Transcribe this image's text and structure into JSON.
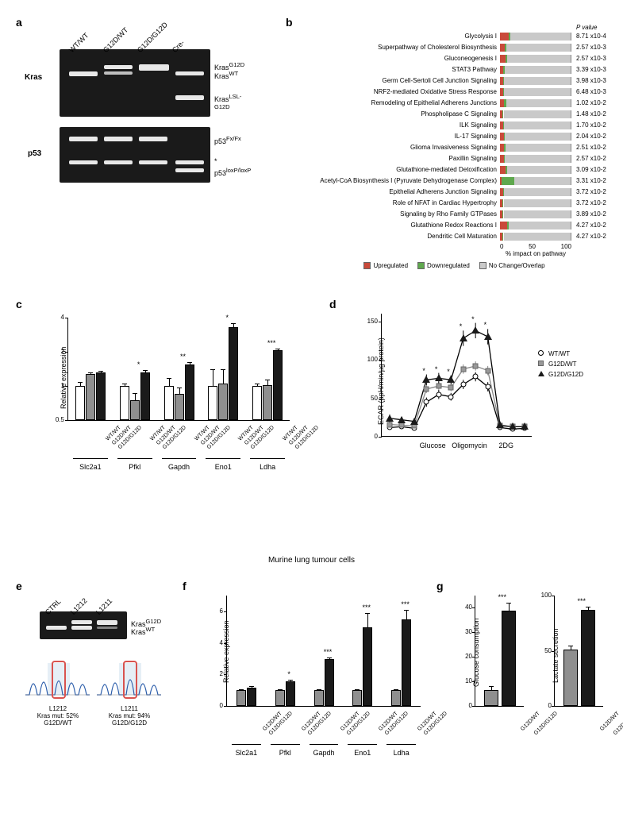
{
  "colors": {
    "up": "#c94a3a",
    "down": "#5fa84e",
    "nochange": "#c9c9c9",
    "bar_white": "#ffffff",
    "bar_gray": "#8f8f8f",
    "bar_black": "#1a1a1a",
    "gel_bg": "#1a1a1a",
    "band": "#ececec",
    "chrom_line": "#2a5caa",
    "chrom_box": "#d9534f"
  },
  "panel_labels": {
    "a": "a",
    "b": "b",
    "c": "c",
    "d": "d",
    "e": "e",
    "f": "f",
    "g": "g"
  },
  "section_title": "Murine lung tumour cells",
  "panel_a": {
    "lane_labels": [
      "WT/WT",
      "G12D/WT",
      "G12D/G12D",
      "Cre-"
    ],
    "kras_title": "Kras",
    "p53_title": "p53",
    "side_labels_kras": [
      "Kras^G12D",
      "Kras^WT",
      "Kras^LSL-G12D"
    ],
    "side_labels_p53": [
      "p53^Fx/Fx",
      "*",
      "p53^loxP/loxP"
    ]
  },
  "panel_b": {
    "header_pval": "P value",
    "x_axis": "% impact on pathway",
    "x_ticks": [
      "0",
      "50",
      "100"
    ],
    "legend": {
      "up": "Upregulated",
      "down": "Downregulated",
      "none": "No Change/Overlap"
    },
    "rows": [
      {
        "label": "Glycolysis I",
        "up": 12,
        "down": 2,
        "pval": "8.71 x10-4"
      },
      {
        "label": "Superpathway of Cholesterol Biosynthesis",
        "up": 7,
        "down": 2,
        "pval": "2.57 x10-3"
      },
      {
        "label": "Gluconeogenesis I",
        "up": 8,
        "down": 2,
        "pval": "2.57 x10-3"
      },
      {
        "label": "STAT3 Pathway",
        "up": 4,
        "down": 3,
        "pval": "3.39 x10-3"
      },
      {
        "label": "Germ Cell-Sertoli Cell Junction Signaling",
        "up": 4,
        "down": 2,
        "pval": "3.98 x10-3"
      },
      {
        "label": "NRF2-mediated Oxidative Stress Response",
        "up": 4,
        "down": 2,
        "pval": "6.48 x10-3"
      },
      {
        "label": "Remodeling of Epithelial Adherens Junctions",
        "up": 6,
        "down": 3,
        "pval": "1.02 x10-2"
      },
      {
        "label": "Phospholipase C Signaling",
        "up": 3,
        "down": 2,
        "pval": "1.48 x10-2"
      },
      {
        "label": "ILK Signaling",
        "up": 4,
        "down": 2,
        "pval": "1.70 x10-2"
      },
      {
        "label": "IL-17 Signaling",
        "up": 5,
        "down": 2,
        "pval": "2.04 x10-2"
      },
      {
        "label": "Glioma Invasiveness Signaling",
        "up": 6,
        "down": 2,
        "pval": "2.51 x10-2"
      },
      {
        "label": "Paxillin Signaling",
        "up": 5,
        "down": 2,
        "pval": "2.57 x10-2"
      },
      {
        "label": "Glutathione-mediated Detoxification",
        "up": 8,
        "down": 2,
        "pval": "3.09 x10-2"
      },
      {
        "label": "Acetyl-CoA Biosynthesis I (Pyruvate Dehydrogenase Complex)",
        "up": 2,
        "down": 18,
        "pval": "3.31 x10-2"
      },
      {
        "label": "Epithelial Adherens Junction Signaling",
        "up": 4,
        "down": 2,
        "pval": "3.72 x10-2"
      },
      {
        "label": "Role of NFAT in Cardiac Hypertrophy",
        "up": 3,
        "down": 2,
        "pval": "3.72 x10-2"
      },
      {
        "label": "Signaling by Rho Family GTPases",
        "up": 3,
        "down": 2,
        "pval": "3.89 x10-2"
      },
      {
        "label": "Glutathione Redox Reactions I",
        "up": 10,
        "down": 2,
        "pval": "4.27 x10-2"
      },
      {
        "label": "Dendritic Cell Maturation",
        "up": 3,
        "down": 2,
        "pval": "4.27 x10-2"
      }
    ]
  },
  "panel_c": {
    "y_label": "Relative expression",
    "y_ticks": [
      "0.5",
      "1",
      "2",
      "4"
    ],
    "groups": [
      "Slc2a1",
      "Pfkl",
      "Gapdh",
      "Eno1",
      "Ldha"
    ],
    "conditions": [
      "WT/WT",
      "G12D/WT",
      "G12D/G12D"
    ],
    "values": [
      [
        1.0,
        1.28,
        1.32
      ],
      [
        1.0,
        0.75,
        1.32
      ],
      [
        1.0,
        0.85,
        1.55
      ],
      [
        1.0,
        1.05,
        3.3
      ],
      [
        1.0,
        1.02,
        2.05
      ]
    ],
    "errs": [
      [
        0.08,
        0.03,
        0.04
      ],
      [
        0.05,
        0.12,
        0.05
      ],
      [
        0.18,
        0.12,
        0.08
      ],
      [
        0.4,
        0.35,
        0.25
      ],
      [
        0.05,
        0.12,
        0.08
      ]
    ],
    "sig": [
      "",
      "*",
      "**",
      "*",
      "***"
    ],
    "ylim": [
      0.5,
      4
    ],
    "scale": "log2"
  },
  "panel_d": {
    "y_label": "ECAR (µpH/min/µg protein)",
    "y_ticks": [
      "0",
      "50",
      "100",
      "150"
    ],
    "x_regions": [
      "Glucose",
      "Oligomycin",
      "2DG"
    ],
    "legend": [
      "WT/WT",
      "G12D/WT",
      "G12D/G12D"
    ],
    "sig_marks": [
      "*",
      "*",
      "*",
      "*",
      "*",
      "*",
      "**"
    ],
    "series": {
      "wt": [
        12,
        13,
        11,
        45,
        55,
        52,
        68,
        78,
        65,
        12,
        10,
        11
      ],
      "het": [
        16,
        15,
        14,
        62,
        66,
        64,
        88,
        92,
        86,
        14,
        13,
        13
      ],
      "hom": [
        24,
        22,
        20,
        74,
        76,
        74,
        128,
        138,
        130,
        15,
        13,
        13
      ]
    },
    "errs": {
      "wt": [
        3,
        3,
        3,
        6,
        6,
        5,
        6,
        6,
        6,
        3,
        3,
        3
      ],
      "het": [
        4,
        3,
        3,
        5,
        5,
        5,
        6,
        6,
        6,
        3,
        3,
        3
      ],
      "hom": [
        5,
        4,
        4,
        7,
        7,
        6,
        10,
        10,
        10,
        3,
        3,
        3
      ]
    },
    "ylim": [
      0,
      160
    ]
  },
  "panel_e": {
    "lane_labels": [
      "CTRL",
      "L1212",
      "L1211"
    ],
    "side_labels": [
      "Kras^G12D",
      "Kras^WT"
    ],
    "l1212_label": "L1212",
    "l1212_text": "Kras mut: 52%\nG12D/WT",
    "l1211_label": "L1211",
    "l1211_text": "Kras mut: 94%\nG12D/G12D"
  },
  "panel_f": {
    "y_label": "Relative expression",
    "y_ticks": [
      "0",
      "2",
      "4",
      "6"
    ],
    "groups": [
      "Slc2a1",
      "Pfkl",
      "Gapdh",
      "Eno1",
      "Ldha"
    ],
    "conditions": [
      "G12D/WT",
      "G12D/G12D"
    ],
    "values": [
      [
        1.0,
        1.15
      ],
      [
        1.0,
        1.55
      ],
      [
        1.0,
        2.95
      ],
      [
        1.0,
        5.0
      ],
      [
        1.0,
        5.5
      ]
    ],
    "errs": [
      [
        0.05,
        0.12
      ],
      [
        0.05,
        0.1
      ],
      [
        0.04,
        0.12
      ],
      [
        0.05,
        0.9
      ],
      [
        0.05,
        0.6
      ]
    ],
    "sig": [
      "",
      "*",
      "***",
      "***",
      "***"
    ],
    "ylim": [
      0,
      7
    ]
  },
  "panel_g": {
    "charts": [
      {
        "y_label": "Glucose consumption",
        "y_ticks": [
          "0",
          "10",
          "20",
          "30",
          "40"
        ],
        "values": [
          6.5,
          39
        ],
        "errs": [
          1.5,
          3
        ],
        "sig": "***",
        "ylim": [
          0,
          45
        ]
      },
      {
        "y_label": "Lactate secretion",
        "y_ticks": [
          "0",
          "50",
          "100"
        ],
        "values": [
          51,
          87
        ],
        "errs": [
          4,
          3
        ],
        "sig": "***",
        "ylim": [
          0,
          100
        ]
      }
    ],
    "conditions": [
      "G12D/WT",
      "G12D/G12D"
    ]
  }
}
